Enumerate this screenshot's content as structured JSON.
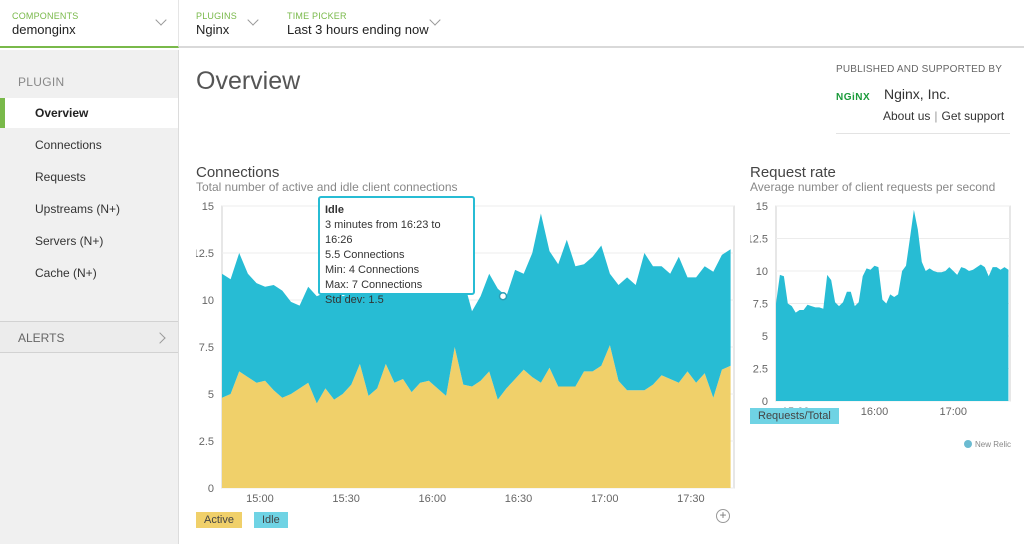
{
  "topbar": {
    "components": {
      "kicker": "COMPONENTS",
      "value": "demonginx"
    },
    "plugins": {
      "kicker": "PLUGINS",
      "value": "Nginx"
    },
    "time_picker": {
      "kicker": "TIME PICKER",
      "value": "Last 3 hours ending now"
    }
  },
  "sidebar": {
    "heading": "PLUGIN",
    "items": [
      {
        "label": "Overview",
        "active": true
      },
      {
        "label": "Connections"
      },
      {
        "label": "Requests"
      },
      {
        "label": "Upstreams (N+)"
      },
      {
        "label": "Servers (N+)"
      },
      {
        "label": "Cache (N+)"
      }
    ],
    "alerts_label": "ALERTS"
  },
  "main": {
    "title": "Overview",
    "publisher": {
      "kicker": "PUBLISHED AND SUPPORTED BY",
      "logo_text": "NGiNX",
      "company": "Nginx, Inc.",
      "about_link": "About us",
      "support_link": "Get support"
    }
  },
  "colors": {
    "active": "#f0d06a",
    "idle": "#27bcd4",
    "accent_green": "#79b94a"
  },
  "chart_data": [
    {
      "type": "area",
      "title": "Connections",
      "subtitle": "Total number of active and idle client connections",
      "ylim": [
        0,
        15
      ],
      "yticks": [
        "0",
        "2.5",
        "5",
        "7.5",
        "10",
        "12.5",
        "15"
      ],
      "xlim": [
        14.78,
        17.75
      ],
      "xticks": [
        {
          "value": 15.0,
          "label": "15:00"
        },
        {
          "value": 15.5,
          "label": "15:30"
        },
        {
          "value": 16.0,
          "label": "16:00"
        },
        {
          "value": 16.5,
          "label": "16:30"
        },
        {
          "value": 17.0,
          "label": "17:00"
        },
        {
          "value": 17.5,
          "label": "17:30"
        }
      ],
      "x": [
        14.78,
        14.83,
        14.88,
        14.93,
        14.98,
        15.03,
        15.08,
        15.13,
        15.18,
        15.23,
        15.28,
        15.33,
        15.38,
        15.43,
        15.48,
        15.53,
        15.58,
        15.63,
        15.68,
        15.73,
        15.78,
        15.83,
        15.88,
        15.93,
        15.98,
        16.03,
        16.08,
        16.13,
        16.18,
        16.23,
        16.28,
        16.33,
        16.38,
        16.43,
        16.48,
        16.53,
        16.58,
        16.63,
        16.68,
        16.73,
        16.78,
        16.83,
        16.88,
        16.93,
        16.98,
        17.03,
        17.08,
        17.13,
        17.18,
        17.23,
        17.28,
        17.33,
        17.38,
        17.43,
        17.48,
        17.53,
        17.58,
        17.63,
        17.68,
        17.73
      ],
      "series": [
        {
          "name": "Active",
          "stacked": true,
          "values": [
            4.8,
            5.0,
            6.2,
            5.9,
            5.6,
            5.7,
            5.2,
            4.8,
            5.0,
            5.3,
            5.6,
            4.5,
            5.3,
            4.7,
            5.0,
            5.5,
            6.6,
            4.9,
            5.3,
            6.6,
            5.6,
            5.8,
            5.1,
            5.6,
            5.7,
            5.3,
            4.9,
            7.5,
            5.5,
            5.4,
            5.7,
            6.2,
            4.7,
            5.3,
            5.8,
            6.3,
            5.9,
            5.6,
            6.4,
            5.4,
            5.4,
            5.4,
            6.2,
            6.2,
            6.5,
            7.6,
            5.7,
            5.2,
            5.2,
            5.2,
            5.5,
            6.0,
            5.8,
            5.6,
            6.2,
            5.6,
            6.1,
            4.8,
            6.3,
            6.5
          ]
        },
        {
          "name": "Idle",
          "stacked": true,
          "values": [
            6.6,
            6.1,
            6.3,
            5.5,
            5.3,
            5.0,
            5.6,
            5.7,
            4.9,
            4.4,
            5.1,
            5.7,
            5.1,
            6.1,
            5.2,
            4.9,
            4.3,
            5.7,
            5.7,
            4.3,
            4.8,
            5.6,
            5.9,
            5.4,
            4.6,
            5.2,
            6.5,
            6.0,
            5.6,
            4.0,
            4.5,
            5.2,
            5.9,
            4.9,
            5.8,
            5.1,
            6.6,
            9.0,
            6.2,
            6.5,
            7.8,
            6.4,
            5.7,
            6.1,
            6.4,
            3.8,
            5.1,
            6.0,
            5.6,
            7.3,
            6.3,
            5.8,
            5.6,
            6.7,
            5.0,
            5.6,
            5.7,
            6.7,
            6.1,
            6.2
          ]
        }
      ],
      "tooltip": {
        "title": "Idle",
        "window": "3 minutes from 16:23 to 16:26",
        "value": "5.5 Connections",
        "min": "Min: 4 Connections",
        "max": "Max: 7 Connections",
        "stddev": "Std dev: 1.5",
        "x": 16.41,
        "y": 10.2
      },
      "legend": [
        "Active",
        "Idle"
      ]
    },
    {
      "type": "area",
      "title": "Request rate",
      "subtitle": "Average number of client requests per second",
      "ylim": [
        0,
        15
      ],
      "yticks": [
        "0",
        "2.5",
        "5",
        "7.5",
        "10",
        "12.5",
        "15"
      ],
      "xlim": [
        14.75,
        17.72
      ],
      "xticks": [
        {
          "value": 15.0,
          "label": "15:00"
        },
        {
          "value": 16.0,
          "label": "16:00"
        },
        {
          "value": 17.0,
          "label": "17:00"
        }
      ],
      "x": [
        14.75,
        14.8,
        14.85,
        14.9,
        14.95,
        15.0,
        15.05,
        15.1,
        15.15,
        15.2,
        15.25,
        15.3,
        15.35,
        15.4,
        15.45,
        15.5,
        15.55,
        15.6,
        15.65,
        15.7,
        15.75,
        15.8,
        15.85,
        15.9,
        15.95,
        16.0,
        16.05,
        16.1,
        16.15,
        16.2,
        16.25,
        16.3,
        16.35,
        16.4,
        16.45,
        16.5,
        16.55,
        16.6,
        16.65,
        16.7,
        16.75,
        16.8,
        16.85,
        16.9,
        16.95,
        17.0,
        17.05,
        17.1,
        17.15,
        17.2,
        17.25,
        17.3,
        17.35,
        17.4,
        17.45,
        17.5,
        17.55,
        17.6,
        17.65,
        17.7
      ],
      "series": [
        {
          "name": "Requests/Total",
          "stacked": false,
          "values": [
            7.5,
            9.7,
            9.6,
            7.5,
            7.3,
            6.8,
            7.0,
            7.0,
            7.4,
            7.3,
            7.2,
            7.2,
            7.1,
            9.7,
            9.3,
            7.6,
            7.3,
            7.6,
            8.4,
            8.4,
            7.3,
            7.6,
            9.6,
            10.2,
            10.1,
            10.4,
            10.3,
            7.8,
            7.5,
            8.2,
            8.0,
            8.2,
            10.0,
            10.4,
            12.5,
            14.7,
            13.2,
            10.7,
            10.0,
            10.2,
            10.0,
            9.9,
            9.9,
            10.0,
            10.3,
            10.0,
            9.7,
            10.3,
            10.2,
            10.0,
            10.1,
            10.3,
            10.5,
            10.3,
            9.6,
            10.3,
            10.3,
            10.1,
            10.3,
            10.1
          ]
        }
      ],
      "legend": [
        "Requests/Total"
      ],
      "footer": "New Relic"
    }
  ]
}
